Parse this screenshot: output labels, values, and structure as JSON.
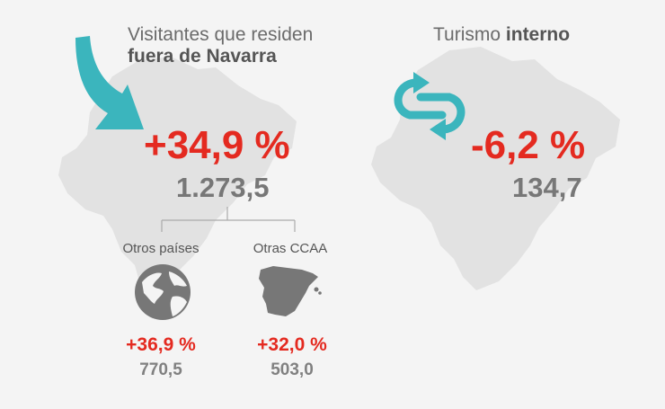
{
  "left": {
    "title_line1": "Visitantes que residen",
    "title_line2": "fuera de Navarra",
    "percent": "+34,9 %",
    "value": "1.273,5",
    "arrow_icon": "curved-arrow-down-icon",
    "breakdown": [
      {
        "label": "Otros países",
        "icon": "globe-icon",
        "percent": "+36,9 %",
        "value": "770,5"
      },
      {
        "label": "Otras CCAA",
        "icon": "spain-map-icon",
        "percent": "+32,0 %",
        "value": "503,0"
      }
    ]
  },
  "right": {
    "title_normal": "Turismo ",
    "title_bold": "interno",
    "percent": "-6,2 %",
    "value": "134,7",
    "cycle_icon": "circular-arrows-icon"
  },
  "colors": {
    "accent_red": "#e42a20",
    "arrow_teal": "#3bb5bd",
    "map_gray": "#e2e2e2",
    "text_gray": "#777777"
  }
}
